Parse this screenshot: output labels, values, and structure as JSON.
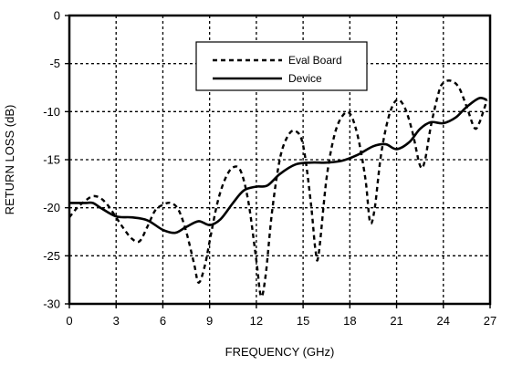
{
  "chart_data": {
    "type": "line",
    "xlabel": "FREQUENCY (GHz)",
    "ylabel": "RETURN LOSS (dB)",
    "xlim": [
      0,
      27
    ],
    "ylim": [
      -30,
      0
    ],
    "x_ticks": [
      0,
      3,
      6,
      9,
      12,
      15,
      18,
      21,
      24,
      27
    ],
    "x_tick_labels": [
      "0",
      "3",
      "6",
      "9",
      "12",
      "15",
      "18",
      "21",
      "24",
      "27"
    ],
    "y_ticks": [
      0,
      -5,
      -10,
      -15,
      -20,
      -25,
      -30
    ],
    "y_tick_labels": [
      "0",
      "-5",
      "-10",
      "-15",
      "-20",
      "-25",
      "-30"
    ],
    "grid": true,
    "legend_position": "top-center",
    "series": [
      {
        "name": "Eval Board",
        "style": "dashed",
        "points": [
          [
            0,
            -21.0
          ],
          [
            0.5,
            -20.0
          ],
          [
            1.0,
            -19.3
          ],
          [
            1.5,
            -18.8
          ],
          [
            2.0,
            -19.0
          ],
          [
            2.5,
            -19.8
          ],
          [
            3.0,
            -21.0
          ],
          [
            3.5,
            -22.2
          ],
          [
            4.0,
            -23.2
          ],
          [
            4.5,
            -23.5
          ],
          [
            5.0,
            -22.0
          ],
          [
            5.5,
            -20.3
          ],
          [
            6.0,
            -19.7
          ],
          [
            6.5,
            -19.5
          ],
          [
            7.0,
            -20.2
          ],
          [
            7.5,
            -22.5
          ],
          [
            8.0,
            -25.8
          ],
          [
            8.3,
            -27.8
          ],
          [
            8.7,
            -26.0
          ],
          [
            9.0,
            -23.5
          ],
          [
            9.5,
            -19.5
          ],
          [
            10.0,
            -17.0
          ],
          [
            10.5,
            -15.8
          ],
          [
            11.0,
            -16.2
          ],
          [
            11.5,
            -19.5
          ],
          [
            12.0,
            -25.5
          ],
          [
            12.3,
            -29.2
          ],
          [
            12.6,
            -27.0
          ],
          [
            13.0,
            -20.5
          ],
          [
            13.5,
            -15.0
          ],
          [
            14.0,
            -12.6
          ],
          [
            14.5,
            -12.0
          ],
          [
            15.0,
            -13.5
          ],
          [
            15.5,
            -19.5
          ],
          [
            15.8,
            -24.5
          ],
          [
            16.0,
            -24.8
          ],
          [
            16.5,
            -17.0
          ],
          [
            17.0,
            -12.5
          ],
          [
            17.5,
            -10.5
          ],
          [
            18.0,
            -10.2
          ],
          [
            18.5,
            -12.5
          ],
          [
            19.0,
            -17.0
          ],
          [
            19.3,
            -21.5
          ],
          [
            19.6,
            -20.0
          ],
          [
            20.0,
            -14.5
          ],
          [
            20.5,
            -10.5
          ],
          [
            21.0,
            -8.8
          ],
          [
            21.5,
            -9.5
          ],
          [
            22.0,
            -12.0
          ],
          [
            22.5,
            -15.6
          ],
          [
            22.8,
            -15.2
          ],
          [
            23.2,
            -11.5
          ],
          [
            23.7,
            -8.0
          ],
          [
            24.0,
            -7.0
          ],
          [
            24.5,
            -6.8
          ],
          [
            25.0,
            -7.5
          ],
          [
            25.5,
            -9.5
          ],
          [
            26.0,
            -11.7
          ],
          [
            26.3,
            -11.2
          ],
          [
            26.6,
            -9.8
          ],
          [
            26.8,
            -8.8
          ]
        ]
      },
      {
        "name": "Device",
        "style": "solid",
        "points": [
          [
            0,
            -19.5
          ],
          [
            1.0,
            -19.5
          ],
          [
            1.5,
            -19.5
          ],
          [
            2.0,
            -20.0
          ],
          [
            3.0,
            -20.9
          ],
          [
            4.0,
            -21.0
          ],
          [
            5.0,
            -21.3
          ],
          [
            6.0,
            -22.3
          ],
          [
            6.8,
            -22.6
          ],
          [
            7.5,
            -22.0
          ],
          [
            8.3,
            -21.4
          ],
          [
            9.0,
            -21.8
          ],
          [
            9.7,
            -21.2
          ],
          [
            10.5,
            -19.5
          ],
          [
            11.2,
            -18.2
          ],
          [
            12.0,
            -17.8
          ],
          [
            12.7,
            -17.7
          ],
          [
            13.5,
            -16.5
          ],
          [
            14.5,
            -15.5
          ],
          [
            15.5,
            -15.3
          ],
          [
            16.5,
            -15.3
          ],
          [
            17.5,
            -15.1
          ],
          [
            18.5,
            -14.5
          ],
          [
            19.5,
            -13.6
          ],
          [
            20.3,
            -13.4
          ],
          [
            21.0,
            -13.9
          ],
          [
            21.8,
            -13.2
          ],
          [
            22.5,
            -11.8
          ],
          [
            23.2,
            -11.1
          ],
          [
            24.0,
            -11.2
          ],
          [
            24.8,
            -10.6
          ],
          [
            25.5,
            -9.5
          ],
          [
            26.3,
            -8.6
          ],
          [
            26.8,
            -8.8
          ]
        ]
      }
    ]
  }
}
